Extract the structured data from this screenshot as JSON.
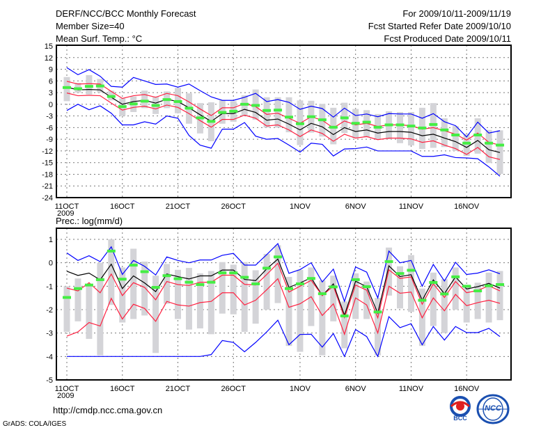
{
  "header": {
    "title": "DERF/NCC/BCC Monthly Forecast",
    "member_size": "Member Size=40",
    "variable": "Mean Surf. Temp.: °C",
    "period": "For 2009/10/11-2009/11/19",
    "started": "Fcst Started Refer Date 2009/10/10",
    "produced": "Fcst Produced Date 2009/10/11"
  },
  "footer": {
    "url": "http://cmdp.ncc.cma.gov.cn",
    "credit": "GrADS: COLA/IGES",
    "logo_left": "BCC",
    "logo_right": "NCC"
  },
  "colors": {
    "mean": "#000000",
    "spread": "#ff2040",
    "extreme": "#0000ff",
    "marker": "#44ee44",
    "box": "#d4d4d8"
  },
  "chart_data": [
    {
      "type": "line",
      "title": "Mean Surf. Temp.: °C",
      "ylim": [
        -24,
        15
      ],
      "yticks": [
        "15",
        "12",
        "9",
        "6",
        "3",
        "0",
        "-3",
        "-6",
        "-9",
        "-12",
        "-15",
        "-18",
        "-21",
        "-24"
      ],
      "ytick_values": [
        15,
        12,
        9,
        6,
        3,
        0,
        -3,
        -6,
        -9,
        -12,
        -15,
        -18,
        -21,
        -24
      ],
      "xtick_labels": [
        "11OCT",
        "16OCT",
        "21OCT",
        "26OCT",
        "1NOV",
        "6NOV",
        "11NOV",
        "16NOV"
      ],
      "xtick_days": [
        0,
        5,
        10,
        15,
        21,
        26,
        31,
        36
      ],
      "year_label": "2009",
      "grid": true,
      "series": [
        {
          "name": "ensemble-mean",
          "values": [
            4.4,
            3.7,
            3.8,
            3.7,
            1.8,
            0,
            0.7,
            1.0,
            0.3,
            1.3,
            0.7,
            -0.9,
            -2.7,
            -4.4,
            -2.4,
            -2.4,
            -1.3,
            -2.1,
            -4.1,
            -3.8,
            -5.1,
            -6.6,
            -4.9,
            -5.8,
            -7.8,
            -6.0,
            -7.0,
            -6.6,
            -7.4,
            -7.0,
            -7.0,
            -7.2,
            -8.1,
            -7.7,
            -8.7,
            -9.6,
            -11.1,
            -9.3,
            -11.7,
            -12.4
          ]
        },
        {
          "name": "spread-upper",
          "values": [
            5.9,
            5.2,
            5.3,
            5.2,
            3.3,
            1.5,
            2.2,
            2.5,
            1.8,
            2.8,
            2.2,
            0.6,
            -1.2,
            -2.9,
            -0.9,
            -0.9,
            0.2,
            -0.6,
            -2.6,
            -2.3,
            -3.6,
            -4.9,
            -3.2,
            -4.1,
            -6.1,
            -4.3,
            -5.3,
            -4.9,
            -5.7,
            -5.3,
            -5.3,
            -5.5,
            -6.4,
            -6.0,
            -6.8,
            -7.7,
            -9.2,
            -7.4,
            -9.8,
            -10.5
          ]
        },
        {
          "name": "spread-lower",
          "values": [
            2.9,
            2.2,
            2.3,
            2.2,
            0.3,
            -1.5,
            -0.8,
            -0.5,
            -1.2,
            -0.2,
            -0.8,
            -2.4,
            -4.2,
            -5.9,
            -3.9,
            -3.9,
            -2.8,
            -3.6,
            -5.6,
            -5.3,
            -6.6,
            -8.3,
            -6.6,
            -7.5,
            -9.5,
            -7.7,
            -8.7,
            -8.3,
            -9.1,
            -8.7,
            -8.7,
            -8.9,
            -9.8,
            -9.4,
            -10.5,
            -11.4,
            -12.9,
            -11.1,
            -13.5,
            -14.2
          ]
        },
        {
          "name": "max",
          "values": [
            9.4,
            7.6,
            8.9,
            7.2,
            4.6,
            4.4,
            6.9,
            6.0,
            5.1,
            5.2,
            4.4,
            5.2,
            3.5,
            1.9,
            1.0,
            1.0,
            1.8,
            2.8,
            0.7,
            1.2,
            0.5,
            -1.3,
            -0.5,
            -1.1,
            -3.3,
            -1.0,
            -2.9,
            -2.5,
            -3.2,
            -2.4,
            -2.5,
            -2.5,
            -3.6,
            -2.4,
            -4.5,
            -5.5,
            -8.4,
            -4.6,
            -7.4,
            -6.8
          ]
        },
        {
          "name": "min",
          "values": [
            -1.6,
            0,
            -1.4,
            -0.4,
            -2.3,
            -5.3,
            -5.3,
            -4.5,
            -5.1,
            -3.0,
            -3.6,
            -8.0,
            -10.5,
            -11.3,
            -6.4,
            -6.4,
            -4.7,
            -8.2,
            -9.0,
            -8.8,
            -10.5,
            -12.3,
            -10.0,
            -10.3,
            -13.3,
            -11.5,
            -11.4,
            -11.0,
            -12.0,
            -12.0,
            -12.0,
            -12.0,
            -13.4,
            -13.4,
            -13.0,
            -13.7,
            -13.8,
            -14.0,
            -16.1,
            -18.5
          ]
        },
        {
          "name": "markers",
          "values": [
            4.3,
            4.0,
            4.6,
            4.7,
            2.0,
            -0.6,
            0.1,
            0.8,
            -0.3,
            1.2,
            0.7,
            -1.0,
            -3.5,
            -4.4,
            -2.1,
            -1.8,
            0.0,
            -0.3,
            -1.6,
            -1.5,
            -3.3,
            -5.0,
            -3.2,
            -4.0,
            -5.9,
            -3.5,
            -4.9,
            -4.6,
            -5.9,
            -5.3,
            -5.3,
            -5.6,
            -6.1,
            -5.2,
            -6.6,
            -7.9,
            -10.0,
            -7.9,
            -10.0,
            -10.5
          ]
        }
      ],
      "boxes": [
        [
          0.8,
          7.0
        ],
        [
          3,
          5.5
        ],
        [
          2.5,
          7.5
        ],
        [
          3,
          6.5
        ],
        [
          1,
          3.5
        ],
        [
          -3,
          1.5
        ],
        [
          -2,
          2
        ],
        [
          -1,
          3.5
        ],
        [
          -2.5,
          2
        ],
        [
          -1,
          3.3
        ],
        [
          -2.3,
          4.2
        ],
        [
          -5,
          2.8
        ],
        [
          -7.5,
          0.3
        ],
        [
          -9.5,
          0.5
        ],
        [
          -5,
          1
        ],
        [
          -4.5,
          0.8
        ],
        [
          -3,
          2.3
        ],
        [
          -4,
          3.8
        ],
        [
          -6,
          1.8
        ],
        [
          -6,
          1.8
        ],
        [
          -7.2,
          1.8
        ],
        [
          -10.5,
          1
        ],
        [
          -7.3,
          0.9
        ],
        [
          -8.3,
          0.1
        ],
        [
          -10.3,
          -0.9
        ],
        [
          -7.4,
          0.4
        ],
        [
          -8.7,
          -1.2
        ],
        [
          -8.5,
          -1.5
        ],
        [
          -9,
          -2.5
        ],
        [
          -9,
          -1.8
        ],
        [
          -10,
          -2
        ],
        [
          -10.6,
          -2
        ],
        [
          -11.5,
          -0.9
        ],
        [
          -11.2,
          0.3
        ],
        [
          -11,
          -3.6
        ],
        [
          -12,
          -5.6
        ],
        [
          -13.3,
          -7.6
        ],
        [
          -12.7,
          -3.6
        ],
        [
          -15.1,
          -6.6
        ],
        [
          -17.9,
          -6.7
        ]
      ]
    },
    {
      "type": "line",
      "title": "Prec.: log(mm/d)",
      "ylim": [
        -5,
        1
      ],
      "yticks": [
        "1",
        "0",
        "-1",
        "-2",
        "-3",
        "-4",
        "-5"
      ],
      "ytick_values": [
        1,
        0,
        -1,
        -2,
        -3,
        -4,
        -5
      ],
      "xtick_labels": [
        "11OCT",
        "16OCT",
        "21OCT",
        "26OCT",
        "1NOV",
        "6NOV",
        "11NOV",
        "16NOV"
      ],
      "xtick_days": [
        0,
        5,
        10,
        15,
        21,
        26,
        31,
        36
      ],
      "year_label": "2009",
      "grid": true,
      "series": [
        {
          "name": "ensemble-mean",
          "values": [
            -0.36,
            -0.54,
            -0.44,
            -0.73,
            -0.06,
            -1.1,
            -0.56,
            -0.86,
            -1.23,
            -0.48,
            -0.59,
            -0.69,
            -0.56,
            -0.56,
            -0.31,
            -0.31,
            -0.71,
            -0.76,
            -0.26,
            0.16,
            -1.05,
            -0.86,
            -0.64,
            -1.4,
            -0.9,
            -2.24,
            -0.79,
            -1.02,
            -2.15,
            -0.13,
            -0.59,
            -0.51,
            -1.6,
            -0.73,
            -1.32,
            -0.6,
            -1.12,
            -1.02,
            -0.88,
            -1.08
          ]
        },
        {
          "name": "spread-upper",
          "values": [
            -1.08,
            -1.2,
            -0.85,
            -1.28,
            -0.48,
            -1.4,
            -0.85,
            -1.05,
            -1.58,
            -0.8,
            -0.93,
            -0.97,
            -0.83,
            -0.83,
            -0.53,
            -0.53,
            -0.92,
            -0.95,
            -0.5,
            -0.02,
            -1.25,
            -1.0,
            -0.75,
            -1.4,
            -1.0,
            -2.34,
            -0.95,
            -1.17,
            -2.35,
            -0.3,
            -0.67,
            -0.6,
            -1.77,
            -0.9,
            -1.48,
            -0.8,
            -1.28,
            -1.18,
            -0.98,
            -1.2
          ]
        },
        {
          "name": "spread-lower",
          "values": [
            -3.13,
            -2.95,
            -2.55,
            -2.7,
            -1.52,
            -2.4,
            -1.77,
            -1.95,
            -2.5,
            -1.65,
            -1.8,
            -1.85,
            -1.7,
            -1.65,
            -1.28,
            -1.28,
            -1.8,
            -1.6,
            -1.15,
            -0.68,
            -1.9,
            -1.75,
            -1.45,
            -2.25,
            -1.75,
            -3.05,
            -1.5,
            -1.8,
            -3.0,
            -1.0,
            -1.3,
            -1.25,
            -2.35,
            -1.5,
            -2.05,
            -1.35,
            -1.83,
            -1.7,
            -1.6,
            -1.73
          ]
        },
        {
          "name": "max",
          "values": [
            0.42,
            0.1,
            0.3,
            0.05,
            0.68,
            -0.5,
            0.1,
            -0.15,
            -0.52,
            0.25,
            0.1,
            0.0,
            0.12,
            0.12,
            0.32,
            0.4,
            -0.1,
            -0.1,
            0.35,
            0.82,
            -0.45,
            -0.29,
            0.0,
            -0.82,
            -0.27,
            -1.65,
            -0.18,
            -0.4,
            -1.5,
            0.5,
            0.0,
            0.1,
            -1.0,
            -0.07,
            -0.78,
            0.02,
            -0.5,
            -0.44,
            -0.3,
            -0.47
          ]
        },
        {
          "name": "min",
          "values": [
            -4,
            -4,
            -4,
            -4,
            -4,
            -4,
            -4,
            -4,
            -4,
            -4,
            -4,
            -4,
            -4,
            -3.92,
            -3.32,
            -3.4,
            -3.8,
            -3.4,
            -2.95,
            -2.45,
            -3.5,
            -3.06,
            -3.05,
            -3.6,
            -3.02,
            -4.0,
            -2.85,
            -3.15,
            -4.0,
            -2.3,
            -2.77,
            -2.6,
            -3.5,
            -2.72,
            -3.3,
            -2.72,
            -2.98,
            -2.98,
            -2.8,
            -3.15
          ]
        },
        {
          "name": "markers",
          "values": [
            -1.48,
            -1.1,
            -0.95,
            -0.72,
            0.5,
            -0.7,
            -0.1,
            -0.38,
            -1.05,
            -0.55,
            -0.68,
            -0.83,
            -0.93,
            -0.83,
            -0.43,
            -0.43,
            -0.62,
            -0.9,
            -0.23,
            0.25,
            -1.1,
            -0.9,
            -0.67,
            -1.32,
            -1.03,
            -2.27,
            -0.72,
            -1.02,
            -2.1,
            0.05,
            -0.46,
            -0.32,
            -1.6,
            -0.84,
            -1.33,
            -0.6,
            -1.0,
            -1.2,
            -0.98,
            -0.93
          ]
        }
      ],
      "boxes": [
        [
          -2.95,
          -1.0
        ],
        [
          -2.5,
          -0.67
        ],
        [
          -3.25,
          -0.95
        ],
        [
          -3.95,
          0.0
        ],
        [
          -1.8,
          1.0
        ],
        [
          -2.55,
          -0.2
        ],
        [
          -2.4,
          0.6
        ],
        [
          -2.25,
          0.05
        ],
        [
          -3.85,
          -0.55
        ],
        [
          -1.75,
          -0.05
        ],
        [
          -2.4,
          -0.3
        ],
        [
          -2.85,
          -0.22
        ],
        [
          -2.8,
          -0.45
        ],
        [
          -3.05,
          -0.35
        ],
        [
          -2.17,
          0.03
        ],
        [
          -2.2,
          -0.08
        ],
        [
          -2.95,
          0.03
        ],
        [
          -2.6,
          -0.32
        ],
        [
          -2.0,
          0.38
        ],
        [
          -1.72,
          0.75
        ],
        [
          -3.55,
          -0.6
        ],
        [
          -3.8,
          -0.3
        ],
        [
          -2.7,
          -0.2
        ],
        [
          -3.95,
          -0.75
        ],
        [
          -2.5,
          -0.55
        ],
        [
          -3.65,
          -1.65
        ],
        [
          -2.4,
          -0.45
        ],
        [
          -2.4,
          -0.8
        ],
        [
          -3.95,
          -1.5
        ],
        [
          -1.4,
          0.65
        ],
        [
          -1.95,
          -0.15
        ],
        [
          -2.1,
          0.33
        ],
        [
          -3.55,
          -1.1
        ],
        [
          -2.7,
          -0.42
        ],
        [
          -3.0,
          -0.7
        ],
        [
          -2.0,
          -0.2
        ],
        [
          -2.55,
          -0.95
        ],
        [
          -2.4,
          -0.85
        ],
        [
          -2.55,
          -0.42
        ],
        [
          -2.45,
          -0.35
        ]
      ]
    }
  ]
}
